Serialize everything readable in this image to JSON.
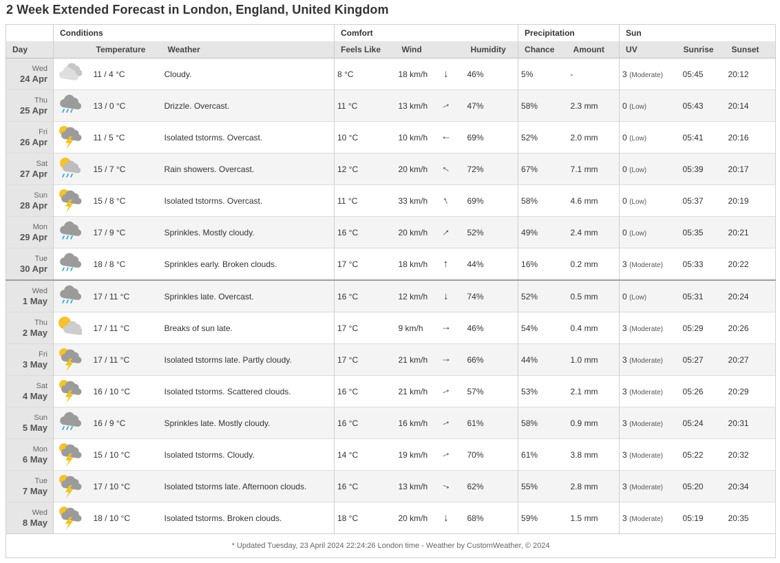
{
  "page_title": "2 Week Extended Forecast in London, England, United Kingdom",
  "groups": {
    "conditions": "Conditions",
    "comfort": "Comfort",
    "precipitation": "Precipitation",
    "sun": "Sun"
  },
  "columns": {
    "day": "Day",
    "temperature": "Temperature",
    "weather": "Weather",
    "feels_like": "Feels Like",
    "wind": "Wind",
    "humidity": "Humidity",
    "chance": "Chance",
    "amount": "Amount",
    "uv": "UV",
    "sunrise": "Sunrise",
    "sunset": "Sunset"
  },
  "rows": [
    {
      "dow": "Wed",
      "date": "24 Apr",
      "icon": "cloudy-icon",
      "temp": "11 / 4 °C",
      "weather": "Cloudy.",
      "feels": "8 °C",
      "wind": "18 km/h",
      "wind_deg": 180,
      "humidity": "46%",
      "chance": "5%",
      "amount": "-",
      "uv": "3",
      "uv_label": "(Moderate)",
      "sunrise": "05:45",
      "sunset": "20:12"
    },
    {
      "dow": "Thu",
      "date": "25 Apr",
      "icon": "rain-cloud-icon",
      "temp": "13 / 0 °C",
      "weather": "Drizzle. Overcast.",
      "feels": "11 °C",
      "wind": "13 km/h",
      "wind_deg": 65,
      "humidity": "47%",
      "chance": "58%",
      "amount": "2.3 mm",
      "uv": "0",
      "uv_label": "(Low)",
      "sunrise": "05:43",
      "sunset": "20:14"
    },
    {
      "dow": "Fri",
      "date": "26 Apr",
      "icon": "thunderstorm-icon",
      "temp": "11 / 5 °C",
      "weather": "Isolated tstorms. Overcast.",
      "feels": "10 °C",
      "wind": "10 km/h",
      "wind_deg": 270,
      "humidity": "69%",
      "chance": "52%",
      "amount": "2.0 mm",
      "uv": "0",
      "uv_label": "(Low)",
      "sunrise": "05:41",
      "sunset": "20:16"
    },
    {
      "dow": "Sat",
      "date": "27 Apr",
      "icon": "sun-rain-icon",
      "temp": "15 / 7 °C",
      "weather": "Rain showers. Overcast.",
      "feels": "12 °C",
      "wind": "20 km/h",
      "wind_deg": 305,
      "humidity": "72%",
      "chance": "67%",
      "amount": "7.1 mm",
      "uv": "0",
      "uv_label": "(Low)",
      "sunrise": "05:39",
      "sunset": "20:17"
    },
    {
      "dow": "Sun",
      "date": "28 Apr",
      "icon": "thunderstorm-icon",
      "temp": "15 / 8 °C",
      "weather": "Isolated tstorms. Overcast.",
      "feels": "11 °C",
      "wind": "33 km/h",
      "wind_deg": 335,
      "humidity": "69%",
      "chance": "58%",
      "amount": "4.6 mm",
      "uv": "0",
      "uv_label": "(Low)",
      "sunrise": "05:37",
      "sunset": "20:19"
    },
    {
      "dow": "Mon",
      "date": "29 Apr",
      "icon": "rain-cloud-icon",
      "temp": "17 / 9 °C",
      "weather": "Sprinkles. Mostly cloudy.",
      "feels": "16 °C",
      "wind": "20 km/h",
      "wind_deg": 45,
      "humidity": "52%",
      "chance": "49%",
      "amount": "2.4 mm",
      "uv": "0",
      "uv_label": "(Low)",
      "sunrise": "05:35",
      "sunset": "20:21"
    },
    {
      "dow": "Tue",
      "date": "30 Apr",
      "icon": "rain-cloud-icon",
      "temp": "18 / 8 °C",
      "weather": "Sprinkles early. Broken clouds.",
      "feels": "17 °C",
      "wind": "18 km/h",
      "wind_deg": 0,
      "humidity": "44%",
      "chance": "16%",
      "amount": "0.2 mm",
      "uv": "3",
      "uv_label": "(Moderate)",
      "sunrise": "05:33",
      "sunset": "20:22"
    },
    {
      "dow": "Wed",
      "date": "1 May",
      "icon": "rain-cloud-icon",
      "temp": "17 / 11 °C",
      "weather": "Sprinkles late. Overcast.",
      "feels": "16 °C",
      "wind": "12 km/h",
      "wind_deg": 180,
      "humidity": "74%",
      "chance": "52%",
      "amount": "0.5 mm",
      "uv": "0",
      "uv_label": "(Low)",
      "sunrise": "05:31",
      "sunset": "20:24"
    },
    {
      "dow": "Thu",
      "date": "2 May",
      "icon": "partly-sunny-icon",
      "temp": "17 / 11 °C",
      "weather": "Breaks of sun late.",
      "feels": "17 °C",
      "wind": "9 km/h",
      "wind_deg": 90,
      "humidity": "46%",
      "chance": "54%",
      "amount": "0.4 mm",
      "uv": "3",
      "uv_label": "(Moderate)",
      "sunrise": "05:29",
      "sunset": "20:26"
    },
    {
      "dow": "Fri",
      "date": "3 May",
      "icon": "thunderstorm-icon",
      "temp": "17 / 11 °C",
      "weather": "Isolated tstorms late. Partly cloudy.",
      "feels": "17 °C",
      "wind": "21 km/h",
      "wind_deg": 90,
      "humidity": "66%",
      "chance": "44%",
      "amount": "1.0 mm",
      "uv": "3",
      "uv_label": "(Moderate)",
      "sunrise": "05:27",
      "sunset": "20:27"
    },
    {
      "dow": "Sat",
      "date": "4 May",
      "icon": "thunderstorm-icon",
      "temp": "16 / 10 °C",
      "weather": "Isolated tstorms. Scattered clouds.",
      "feels": "16 °C",
      "wind": "21 km/h",
      "wind_deg": 65,
      "humidity": "57%",
      "chance": "53%",
      "amount": "2.1 mm",
      "uv": "3",
      "uv_label": "(Moderate)",
      "sunrise": "05:26",
      "sunset": "20:29"
    },
    {
      "dow": "Sun",
      "date": "5 May",
      "icon": "rain-cloud-icon",
      "temp": "16 / 9 °C",
      "weather": "Sprinkles late. Mostly cloudy.",
      "feels": "16 °C",
      "wind": "16 km/h",
      "wind_deg": 65,
      "humidity": "61%",
      "chance": "58%",
      "amount": "0.9 mm",
      "uv": "3",
      "uv_label": "(Moderate)",
      "sunrise": "05:24",
      "sunset": "20:31"
    },
    {
      "dow": "Mon",
      "date": "6 May",
      "icon": "thunderstorm-icon",
      "temp": "15 / 10 °C",
      "weather": "Isolated tstorms. Cloudy.",
      "feels": "14 °C",
      "wind": "19 km/h",
      "wind_deg": 65,
      "humidity": "70%",
      "chance": "61%",
      "amount": "3.8 mm",
      "uv": "3",
      "uv_label": "(Moderate)",
      "sunrise": "05:22",
      "sunset": "20:32"
    },
    {
      "dow": "Tue",
      "date": "7 May",
      "icon": "thunderstorm-icon",
      "temp": "17 / 10 °C",
      "weather": "Isolated tstorms late. Afternoon clouds.",
      "feels": "16 °C",
      "wind": "13 km/h",
      "wind_deg": 115,
      "humidity": "62%",
      "chance": "55%",
      "amount": "2.8 mm",
      "uv": "3",
      "uv_label": "(Moderate)",
      "sunrise": "05:20",
      "sunset": "20:34"
    },
    {
      "dow": "Wed",
      "date": "8 May",
      "icon": "thunderstorm-icon",
      "temp": "18 / 10 °C",
      "weather": "Isolated tstorms. Broken clouds.",
      "feels": "18 °C",
      "wind": "20 km/h",
      "wind_deg": 180,
      "humidity": "68%",
      "chance": "59%",
      "amount": "1.5 mm",
      "uv": "3",
      "uv_label": "(Moderate)",
      "sunrise": "05:19",
      "sunset": "20:35"
    }
  ],
  "footer": "* Updated Tuesday, 23 April 2024 22:24:26 London time - Weather by CustomWeather, © 2024",
  "colors": {
    "header_bg": "#e6e6e6",
    "border": "#cfcfcf",
    "sun": "#f6c12f",
    "lightning": "#f3c318",
    "rain": "#29a3d9",
    "cloud": "#9b9b9b"
  }
}
